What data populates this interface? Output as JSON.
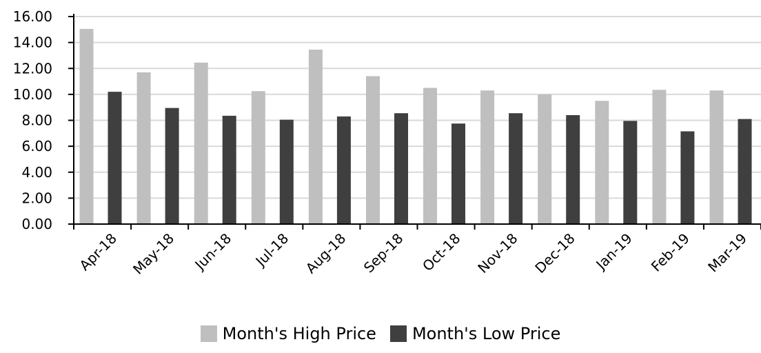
{
  "chart_data": {
    "type": "bar",
    "title": "",
    "xlabel": "",
    "ylabel": "",
    "categories": [
      "Apr-18",
      "May-18",
      "Jun-18",
      "Jul-18",
      "Aug-18",
      "Sep-18",
      "Oct-18",
      "Nov-18",
      "Dec-18",
      "Jan-19",
      "Feb-19",
      "Mar-19"
    ],
    "series": [
      {
        "name": "Month's High Price",
        "color": "#bfbfbf",
        "values": [
          15.05,
          11.7,
          12.45,
          10.25,
          13.45,
          11.4,
          10.5,
          10.3,
          10.0,
          9.5,
          10.35,
          10.3
        ]
      },
      {
        "name": "Month's Low Price",
        "color": "#3f3f3f",
        "values": [
          10.2,
          8.95,
          8.35,
          8.05,
          8.3,
          8.55,
          7.75,
          8.55,
          8.4,
          7.95,
          7.15,
          8.1
        ]
      }
    ],
    "ylim": [
      0,
      16
    ],
    "yticks": [
      "0.00",
      "2.00",
      "4.00",
      "6.00",
      "8.00",
      "10.00",
      "12.00",
      "14.00",
      "16.00"
    ],
    "grid": true,
    "legend_position": "bottom"
  }
}
